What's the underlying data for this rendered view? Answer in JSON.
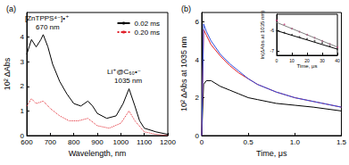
{
  "chart_data": [
    {
      "type": "line",
      "title": "(a)",
      "x_label": "Wavelength, nm",
      "y_label": "10² ΔAbs",
      "xlim": [
        600,
        1200
      ],
      "xticks": [
        600,
        700,
        800,
        900,
        1000,
        1100,
        1200
      ],
      "ylim": [
        0,
        5
      ],
      "yticks": [
        0,
        1,
        2,
        3,
        4
      ],
      "grid": false,
      "legend": "upper right",
      "annotations": [
        "[ZnTPPS⁴⁻]•⁺",
        "670 nm",
        "Li⁺@C₆₀•⁻",
        "1035 nm"
      ],
      "series": [
        {
          "name": "0.02 ms",
          "color": "#000000",
          "line_style": "solid",
          "marker": "none",
          "x": [
            600,
            620,
            640,
            660,
            670,
            690,
            710,
            740,
            770,
            800,
            830,
            860,
            880,
            900,
            940,
            980,
            1010,
            1035,
            1060,
            1080,
            1100,
            1150,
            1200
          ],
          "values": [
            3.3,
            3.9,
            3.6,
            3.9,
            4.1,
            3.6,
            2.9,
            2.2,
            1.7,
            1.3,
            1.2,
            1.4,
            1.2,
            0.9,
            0.7,
            0.8,
            1.3,
            1.9,
            1.2,
            0.6,
            0.3,
            0.15,
            0.05
          ]
        },
        {
          "name": "0.20 ms",
          "color": "#e0202a",
          "line_style": "dotted",
          "marker": "none",
          "x": [
            600,
            620,
            640,
            670,
            700,
            740,
            780,
            820,
            860,
            900,
            950,
            1000,
            1035,
            1060,
            1100,
            1150,
            1200
          ],
          "values": [
            1.2,
            1.5,
            1.3,
            1.4,
            1.1,
            0.8,
            0.6,
            0.6,
            0.7,
            0.4,
            0.3,
            0.5,
            1.0,
            0.6,
            0.15,
            0.05,
            0.0
          ]
        }
      ]
    },
    {
      "type": "line",
      "title": "(b)",
      "x_label": "Time, μs",
      "y_label": "10² ΔAbs at 1035 nm",
      "xlim": [
        0,
        1.5
      ],
      "xticks": [
        0,
        0.5,
        {
          "value": 1,
          "label": "1.0"
        },
        1.5
      ],
      "ylim": [
        0,
        6.5
      ],
      "yticks": [
        0,
        2,
        4,
        6
      ],
      "grid": false,
      "series": [
        {
          "color": "#000000",
          "line_style": "solid",
          "marker": "none",
          "x": [
            0,
            0.02,
            0.05,
            0.1,
            0.2,
            0.3,
            0.4,
            0.5,
            0.6,
            0.8,
            1.0,
            1.2,
            1.5
          ],
          "values": [
            0,
            2.7,
            2.9,
            2.9,
            2.6,
            2.4,
            2.2,
            2.0,
            1.9,
            1.7,
            1.6,
            1.5,
            1.3
          ]
        },
        {
          "color": "#e0202a",
          "line_style": "solid",
          "marker": "none",
          "x": [
            0,
            0.02,
            0.05,
            0.1,
            0.2,
            0.3,
            0.4,
            0.5,
            0.6,
            0.8,
            1.0,
            1.2,
            1.5
          ],
          "values": [
            0,
            5.6,
            5.3,
            4.8,
            4.2,
            3.7,
            3.3,
            3.0,
            2.7,
            2.3,
            2.0,
            1.8,
            1.5
          ]
        },
        {
          "color": "#3050e0",
          "line_style": "solid",
          "marker": "none",
          "x": [
            0,
            0.02,
            0.05,
            0.1,
            0.2,
            0.3,
            0.4,
            0.5,
            0.6,
            0.8,
            1.0,
            1.2,
            1.5
          ],
          "values": [
            0,
            5.9,
            5.5,
            5.0,
            4.3,
            3.8,
            3.4,
            3.0,
            2.7,
            2.3,
            2.0,
            1.8,
            1.5
          ]
        }
      ]
    },
    {
      "type": "scatter",
      "x_label": "Time, μs",
      "y_label": "ln(ΔAbs at 1035 nm)",
      "xlim": [
        0,
        40
      ],
      "xticks": [
        0,
        10,
        20,
        30,
        40
      ],
      "ylim": [
        -7.2,
        -5.2
      ],
      "yticks": [
        -7,
        -6
      ],
      "grid": false,
      "series": [
        {
          "type": "scatter",
          "color": "#c03070",
          "marker": "circle",
          "x": [
            0,
            5,
            10,
            15,
            20,
            25,
            30,
            35,
            40
          ],
          "values": [
            -5.5,
            -5.7,
            -5.9,
            -6.05,
            -6.2,
            -6.35,
            -6.5,
            -6.65,
            -6.8
          ]
        },
        {
          "type": "scatter",
          "color": "#404040",
          "marker": "circle",
          "x": [
            0,
            5,
            10,
            15,
            20,
            25,
            30,
            35,
            40
          ],
          "values": [
            -6.0,
            -6.1,
            -6.2,
            -6.3,
            -6.4,
            -6.5,
            -6.6,
            -6.75,
            -6.9
          ]
        },
        {
          "type": "line",
          "color": "#808080",
          "line_style": "solid",
          "marker": "none",
          "x": [
            0,
            40
          ],
          "values": [
            -5.6,
            -6.8
          ]
        },
        {
          "type": "line",
          "color": "#000000",
          "line_style": "solid",
          "marker": "none",
          "x": [
            0,
            40
          ],
          "values": [
            -6.0,
            -6.9
          ]
        }
      ]
    }
  ]
}
